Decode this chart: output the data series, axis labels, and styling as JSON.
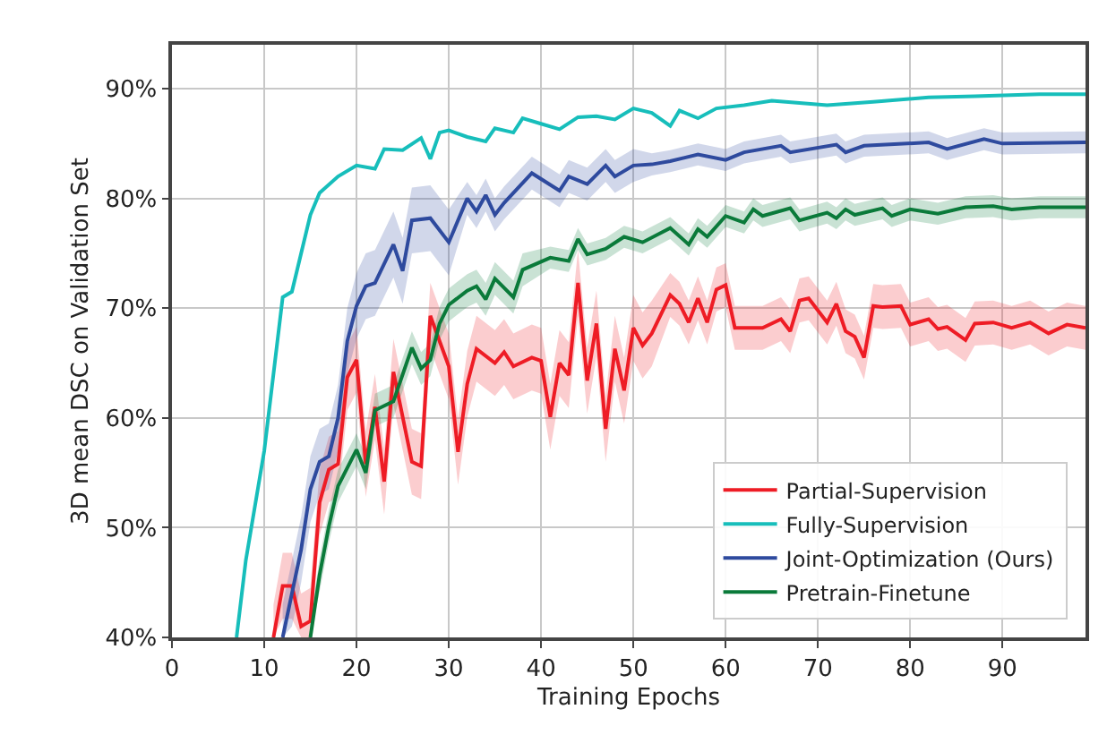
{
  "chart_data": {
    "type": "line",
    "xlabel": "Training Epochs",
    "ylabel": "3D mean DSC on Validation Set",
    "xlim": [
      0,
      99
    ],
    "xticks": [
      0,
      10,
      20,
      30,
      40,
      50,
      60,
      70,
      80,
      90
    ],
    "ylim": [
      40,
      94
    ],
    "yticks": [
      {
        "value": 40,
        "label": "40%"
      },
      {
        "value": 50,
        "label": "50%"
      },
      {
        "value": 60,
        "label": "60%"
      },
      {
        "value": 70,
        "label": "70%"
      },
      {
        "value": 80,
        "label": "80%"
      },
      {
        "value": 90,
        "label": "90%"
      }
    ],
    "grid": true,
    "legend": "bottom right",
    "marker": "none",
    "line_style": "solid",
    "series": [
      {
        "name": "Partial-Supervision",
        "color": "#ee1c25",
        "x": [
          11,
          12,
          13,
          14,
          15,
          16,
          17,
          18,
          19,
          20,
          21,
          22,
          23,
          24,
          26,
          27,
          28,
          30,
          31,
          32,
          33,
          35,
          36,
          37,
          39,
          40,
          41,
          42,
          43,
          44,
          45,
          46,
          47,
          48,
          49,
          50,
          51,
          52,
          54,
          55,
          56,
          57,
          58,
          59,
          60,
          61,
          64,
          66,
          67,
          68,
          69,
          71,
          72,
          73,
          74,
          75,
          76,
          77,
          79,
          80,
          82,
          83,
          84,
          86,
          87,
          89,
          91,
          93,
          95,
          97,
          99
        ],
        "values": [
          40,
          44.7,
          44.7,
          41,
          41.5,
          52.3,
          55.3,
          55.8,
          63.7,
          65.3,
          55.8,
          61,
          54.2,
          64.2,
          56,
          55.6,
          69.3,
          64.7,
          56.9,
          63.1,
          66.3,
          65,
          66,
          64.7,
          65.5,
          65.2,
          60.1,
          65,
          63.9,
          72.3,
          63.4,
          68.6,
          59,
          66.3,
          62.5,
          68.2,
          66.6,
          67.7,
          71.2,
          70.4,
          68.7,
          70.9,
          68.7,
          71.7,
          72.1,
          68.2,
          68.2,
          69,
          67.9,
          70.7,
          70.9,
          68.7,
          70.4,
          67.9,
          67.4,
          65.5,
          70.2,
          70.1,
          70.2,
          68.5,
          69,
          68.1,
          68.3,
          67.1,
          68.6,
          68.7,
          68.2,
          68.7,
          67.7,
          68.5,
          68.2
        ],
        "lower": [
          40,
          41.7,
          41.7,
          40,
          40,
          49.3,
          52.3,
          52.8,
          60.7,
          62.3,
          52.8,
          58,
          51.2,
          61.2,
          53,
          52.6,
          66.3,
          61.7,
          53.9,
          60.1,
          63.3,
          62,
          63,
          61.7,
          62.5,
          62.2,
          57.1,
          62,
          60.9,
          69.3,
          60.4,
          65.6,
          56,
          63.3,
          59.5,
          65.2,
          63.6,
          64.7,
          69.2,
          68.4,
          66.7,
          68.9,
          66.7,
          69.7,
          70.1,
          66.2,
          66.2,
          67,
          65.9,
          68.7,
          68.9,
          66.7,
          68.4,
          65.9,
          65.4,
          63.5,
          68.2,
          68.1,
          68.2,
          66.5,
          67,
          66.1,
          66.3,
          65.1,
          66.6,
          66.7,
          66.2,
          66.7,
          65.7,
          66.5,
          66.2
        ],
        "upper": [
          43,
          47.7,
          47.7,
          44,
          44.5,
          55.3,
          58.3,
          58.8,
          66.7,
          68.3,
          58.8,
          64,
          57.2,
          67.2,
          59,
          58.6,
          72.3,
          67.7,
          59.9,
          66.1,
          69.3,
          68,
          69,
          67.7,
          68.5,
          68.2,
          63.1,
          68,
          66.9,
          75.3,
          66.4,
          71.6,
          62,
          69.3,
          65.5,
          71.2,
          69.6,
          70.7,
          73.2,
          72.4,
          70.7,
          72.9,
          70.7,
          73.7,
          74.1,
          70.2,
          70.2,
          71,
          69.9,
          72.7,
          72.9,
          70.7,
          72.4,
          69.9,
          69.4,
          67.5,
          72.2,
          72.1,
          72.2,
          70.5,
          71,
          70.1,
          70.3,
          69.1,
          70.6,
          70.7,
          70.2,
          70.7,
          69.7,
          70.5,
          70.2
        ]
      },
      {
        "name": "Fully-Supervision",
        "color": "#17bebb",
        "x": [
          7,
          8,
          10,
          12,
          13,
          15,
          16,
          18,
          20,
          22,
          23,
          25,
          27,
          28,
          29,
          30,
          32,
          34,
          35,
          37,
          38,
          40,
          42,
          44,
          46,
          48,
          50,
          52,
          54,
          55,
          57,
          59,
          62,
          65,
          71,
          76,
          82,
          87,
          94,
          99
        ],
        "values": [
          40,
          47,
          57,
          71,
          71.5,
          78.5,
          80.5,
          82,
          83,
          82.7,
          84.5,
          84.4,
          85.5,
          83.6,
          86,
          86.2,
          85.6,
          85.2,
          86.4,
          86,
          87.3,
          86.8,
          86.3,
          87.4,
          87.5,
          87.2,
          88.2,
          87.8,
          86.6,
          88,
          87.3,
          88.2,
          88.5,
          88.9,
          88.5,
          88.8,
          89.2,
          89.3,
          89.5,
          89.5
        ]
      },
      {
        "name": "Joint-Optimization (Ours)",
        "color": "#2e4a9e",
        "x": [
          12,
          13,
          14,
          15,
          16,
          17,
          18,
          19,
          20,
          21,
          22,
          24,
          25,
          26,
          28,
          30,
          32,
          33,
          34,
          35,
          36,
          39,
          42,
          43,
          45,
          47,
          48,
          50,
          52,
          54,
          57,
          60,
          62,
          66,
          67,
          72,
          73,
          75,
          82,
          84,
          88,
          90,
          99
        ],
        "values": [
          40,
          44,
          48,
          53.5,
          56,
          56.5,
          60,
          67,
          70.2,
          72,
          72.3,
          75.8,
          73.4,
          78,
          78.2,
          76,
          80,
          78.8,
          80.3,
          78.5,
          79.6,
          82.3,
          80.7,
          82,
          81.3,
          83,
          82,
          83,
          83.1,
          83.4,
          84,
          83.5,
          84.2,
          84.8,
          84.2,
          84.9,
          84.2,
          84.8,
          85.1,
          84.5,
          85.4,
          85,
          85.1
        ],
        "lower": [
          40,
          41,
          45,
          50.5,
          53,
          53.5,
          57,
          64,
          67.2,
          69,
          69.3,
          72.8,
          70.4,
          75,
          75.2,
          73,
          78.5,
          77.3,
          78.8,
          77,
          78.1,
          80.8,
          79.2,
          80.5,
          79.8,
          81.5,
          80.5,
          81.5,
          82.1,
          82.4,
          83,
          82.5,
          83.2,
          83.8,
          83.2,
          83.9,
          83.2,
          83.8,
          84.1,
          83.5,
          84.4,
          84,
          84.1
        ],
        "upper": [
          43,
          47,
          51,
          56.5,
          59,
          59.5,
          63,
          70,
          73.2,
          75,
          75.3,
          78.8,
          76.4,
          81,
          81.2,
          79,
          81.5,
          80.3,
          81.8,
          80,
          81.1,
          83.8,
          82.2,
          83.5,
          82.8,
          84.5,
          83.5,
          84.5,
          84.1,
          84.4,
          85,
          84.5,
          85.2,
          85.8,
          85.2,
          85.9,
          85.2,
          85.8,
          86.1,
          85.5,
          86.4,
          86,
          86.1
        ]
      },
      {
        "name": "Pretrain-Finetune",
        "color": "#0a7a3a",
        "x": [
          15,
          16,
          17,
          18,
          20,
          21,
          22,
          24,
          26,
          27,
          28,
          29,
          30,
          32,
          33,
          34,
          35,
          37,
          38,
          41,
          43,
          44,
          45,
          47,
          49,
          51,
          54,
          56,
          57,
          58,
          60,
          62,
          63,
          64,
          67,
          68,
          71,
          72,
          73,
          74,
          77,
          78,
          80,
          83,
          86,
          89,
          91,
          94,
          99
        ],
        "values": [
          40,
          45.7,
          50.1,
          53.8,
          57.1,
          55,
          60.7,
          61.5,
          66.4,
          64.5,
          65.3,
          68.6,
          70.3,
          71.6,
          72,
          70.8,
          72.7,
          71,
          73.5,
          74.6,
          74.3,
          76.3,
          74.9,
          75.4,
          76.5,
          76,
          77.3,
          75.8,
          77.2,
          76.5,
          78.4,
          77.8,
          79,
          78.4,
          79.1,
          78,
          78.7,
          78.2,
          79,
          78.5,
          79.1,
          78.4,
          79,
          78.6,
          79.2,
          79.3,
          79,
          79.2,
          79.2
        ],
        "lower": [
          40,
          44.2,
          48.6,
          52.3,
          55.6,
          53.5,
          59.2,
          60,
          64.9,
          63,
          63.8,
          67.1,
          68.8,
          70.1,
          70.5,
          69.3,
          71.2,
          69.5,
          72,
          73.6,
          73.3,
          75.3,
          73.9,
          74.4,
          75.5,
          75,
          76.3,
          74.8,
          76.2,
          75.5,
          77.4,
          76.8,
          78,
          77.4,
          78.1,
          77,
          77.7,
          77.2,
          78,
          77.5,
          78.1,
          77.4,
          78,
          77.6,
          78.2,
          78.3,
          78,
          78.2,
          78.2
        ],
        "upper": [
          41.5,
          47.2,
          51.6,
          55.3,
          58.6,
          56.5,
          62.2,
          63,
          67.9,
          66,
          66.8,
          70.1,
          71.8,
          73.1,
          73.5,
          72.3,
          74.2,
          72.5,
          75,
          75.6,
          75.3,
          77.3,
          75.9,
          76.4,
          77.5,
          77,
          78.3,
          76.8,
          78.2,
          77.5,
          79.4,
          78.8,
          80,
          79.4,
          80.1,
          79,
          79.7,
          79.2,
          80,
          79.5,
          80.1,
          79.4,
          80,
          79.6,
          80.2,
          80.3,
          80,
          80.2,
          80.2
        ]
      }
    ]
  }
}
